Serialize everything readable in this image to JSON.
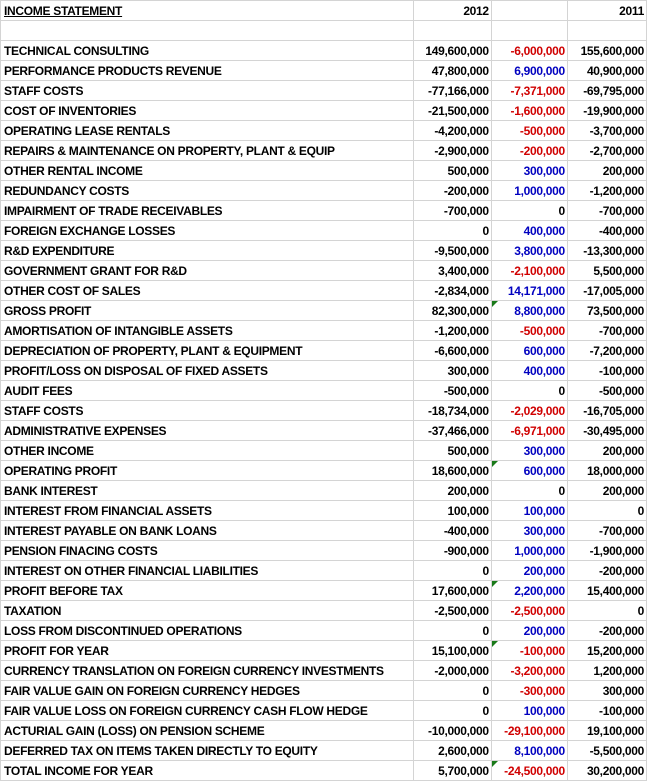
{
  "header": {
    "title": "INCOME STATEMENT",
    "col_2012": "2012",
    "col_diff": "",
    "col_2011": "2011"
  },
  "colors": {
    "positive_diff": "#0000c0",
    "negative_diff": "#d00000",
    "grid": "#d4d4d4"
  },
  "rows": [
    {
      "label": "TECHNICAL CONSULTING",
      "y2012": "149,600,000",
      "diff": "-6,000,000",
      "y2011": "155,600,000"
    },
    {
      "label": "PERFORMANCE PRODUCTS REVENUE",
      "y2012": "47,800,000",
      "diff": "6,900,000",
      "y2011": "40,900,000"
    },
    {
      "label": "STAFF COSTS",
      "y2012": "-77,166,000",
      "diff": "-7,371,000",
      "y2011": "-69,795,000"
    },
    {
      "label": "COST OF INVENTORIES",
      "y2012": "-21,500,000",
      "diff": "-1,600,000",
      "y2011": "-19,900,000"
    },
    {
      "label": "OPERATING LEASE RENTALS",
      "y2012": "-4,200,000",
      "diff": "-500,000",
      "y2011": "-3,700,000"
    },
    {
      "label": "REPAIRS & MAINTENANCE ON PROPERTY, PLANT & EQUIP",
      "y2012": "-2,900,000",
      "diff": "-200,000",
      "y2011": "-2,700,000"
    },
    {
      "label": "OTHER RENTAL INCOME",
      "y2012": "500,000",
      "diff": "300,000",
      "y2011": "200,000"
    },
    {
      "label": "REDUNDANCY COSTS",
      "y2012": "-200,000",
      "diff": "1,000,000",
      "y2011": "-1,200,000"
    },
    {
      "label": "IMPAIRMENT OF TRADE RECEIVABLES",
      "y2012": "-700,000",
      "diff": "0",
      "y2011": "-700,000"
    },
    {
      "label": "FOREIGN EXCHANGE LOSSES",
      "y2012": "0",
      "diff": "400,000",
      "y2011": "-400,000"
    },
    {
      "label": "R&D EXPENDITURE",
      "y2012": "-9,500,000",
      "diff": "3,800,000",
      "y2011": "-13,300,000"
    },
    {
      "label": "GOVERNMENT GRANT FOR R&D",
      "y2012": "3,400,000",
      "diff": "-2,100,000",
      "y2011": "5,500,000"
    },
    {
      "label": "OTHER COST OF SALES",
      "y2012": "-2,834,000",
      "diff": "14,171,000",
      "y2011": "-17,005,000"
    },
    {
      "label": "GROSS PROFIT",
      "y2012": "82,300,000",
      "diff": "8,800,000",
      "y2011": "73,500,000",
      "bold": true
    },
    {
      "label": "AMORTISATION OF INTANGIBLE ASSETS",
      "y2012": "-1,200,000",
      "diff": "-500,000",
      "y2011": "-700,000"
    },
    {
      "label": "DEPRECIATION OF PROPERTY, PLANT & EQUIPMENT",
      "y2012": "-6,600,000",
      "diff": "600,000",
      "y2011": "-7,200,000"
    },
    {
      "label": "PROFIT/LOSS ON DISPOSAL OF FIXED ASSETS",
      "y2012": "300,000",
      "diff": "400,000",
      "y2011": "-100,000"
    },
    {
      "label": "AUDIT FEES",
      "y2012": "-500,000",
      "diff": "0",
      "y2011": "-500,000"
    },
    {
      "label": "STAFF COSTS",
      "y2012": "-18,734,000",
      "diff": "-2,029,000",
      "y2011": "-16,705,000"
    },
    {
      "label": "ADMINISTRATIVE EXPENSES",
      "y2012": "-37,466,000",
      "diff": "-6,971,000",
      "y2011": "-30,495,000"
    },
    {
      "label": "OTHER INCOME",
      "y2012": "500,000",
      "diff": "300,000",
      "y2011": "200,000"
    },
    {
      "label": "OPERATING PROFIT",
      "y2012": "18,600,000",
      "diff": "600,000",
      "y2011": "18,000,000",
      "bold": true
    },
    {
      "label": "BANK INTEREST",
      "y2012": "200,000",
      "diff": "0",
      "y2011": "200,000"
    },
    {
      "label": "INTEREST FROM FINANCIAL ASSETS",
      "y2012": "100,000",
      "diff": "100,000",
      "y2011": "0"
    },
    {
      "label": "INTEREST PAYABLE ON BANK LOANS",
      "y2012": "-400,000",
      "diff": "300,000",
      "y2011": "-700,000"
    },
    {
      "label": "PENSION FINACING COSTS",
      "y2012": "-900,000",
      "diff": "1,000,000",
      "y2011": "-1,900,000"
    },
    {
      "label": "INTEREST ON OTHER FINANCIAL LIABILITIES",
      "y2012": "0",
      "diff": "200,000",
      "y2011": "-200,000"
    },
    {
      "label": "PROFIT BEFORE TAX",
      "y2012": "17,600,000",
      "diff": "2,200,000",
      "y2011": "15,400,000",
      "bold": true
    },
    {
      "label": "TAXATION",
      "y2012": "-2,500,000",
      "diff": "-2,500,000",
      "y2011": "0"
    },
    {
      "label": "LOSS FROM DISCONTINUED OPERATIONS",
      "y2012": "0",
      "diff": "200,000",
      "y2011": "-200,000"
    },
    {
      "label": "PROFIT FOR YEAR",
      "y2012": "15,100,000",
      "diff": "-100,000",
      "y2011": "15,200,000",
      "bold": true
    },
    {
      "label": "CURRENCY TRANSLATION ON FOREIGN CURRENCY INVESTMENTS",
      "y2012": "-2,000,000",
      "diff": "-3,200,000",
      "y2011": "1,200,000"
    },
    {
      "label": "FAIR VALUE GAIN ON FOREIGN CURRENCY HEDGES",
      "y2012": "0",
      "diff": "-300,000",
      "y2011": "300,000"
    },
    {
      "label": "FAIR VALUE LOSS ON FOREIGN CURRENCY CASH FLOW HEDGE",
      "y2012": "0",
      "diff": "100,000",
      "y2011": "-100,000"
    },
    {
      "label": "ACTURIAL GAIN (LOSS) ON PENSION SCHEME",
      "y2012": "-10,000,000",
      "diff": "-29,100,000",
      "y2011": "19,100,000"
    },
    {
      "label": "DEFERRED TAX ON ITEMS TAKEN DIRECTLY TO EQUITY",
      "y2012": "2,600,000",
      "diff": "8,100,000",
      "y2011": "-5,500,000"
    },
    {
      "label": "TOTAL INCOME FOR YEAR",
      "y2012": "5,700,000",
      "diff": "-24,500,000",
      "y2011": "30,200,000",
      "bold": true
    }
  ]
}
